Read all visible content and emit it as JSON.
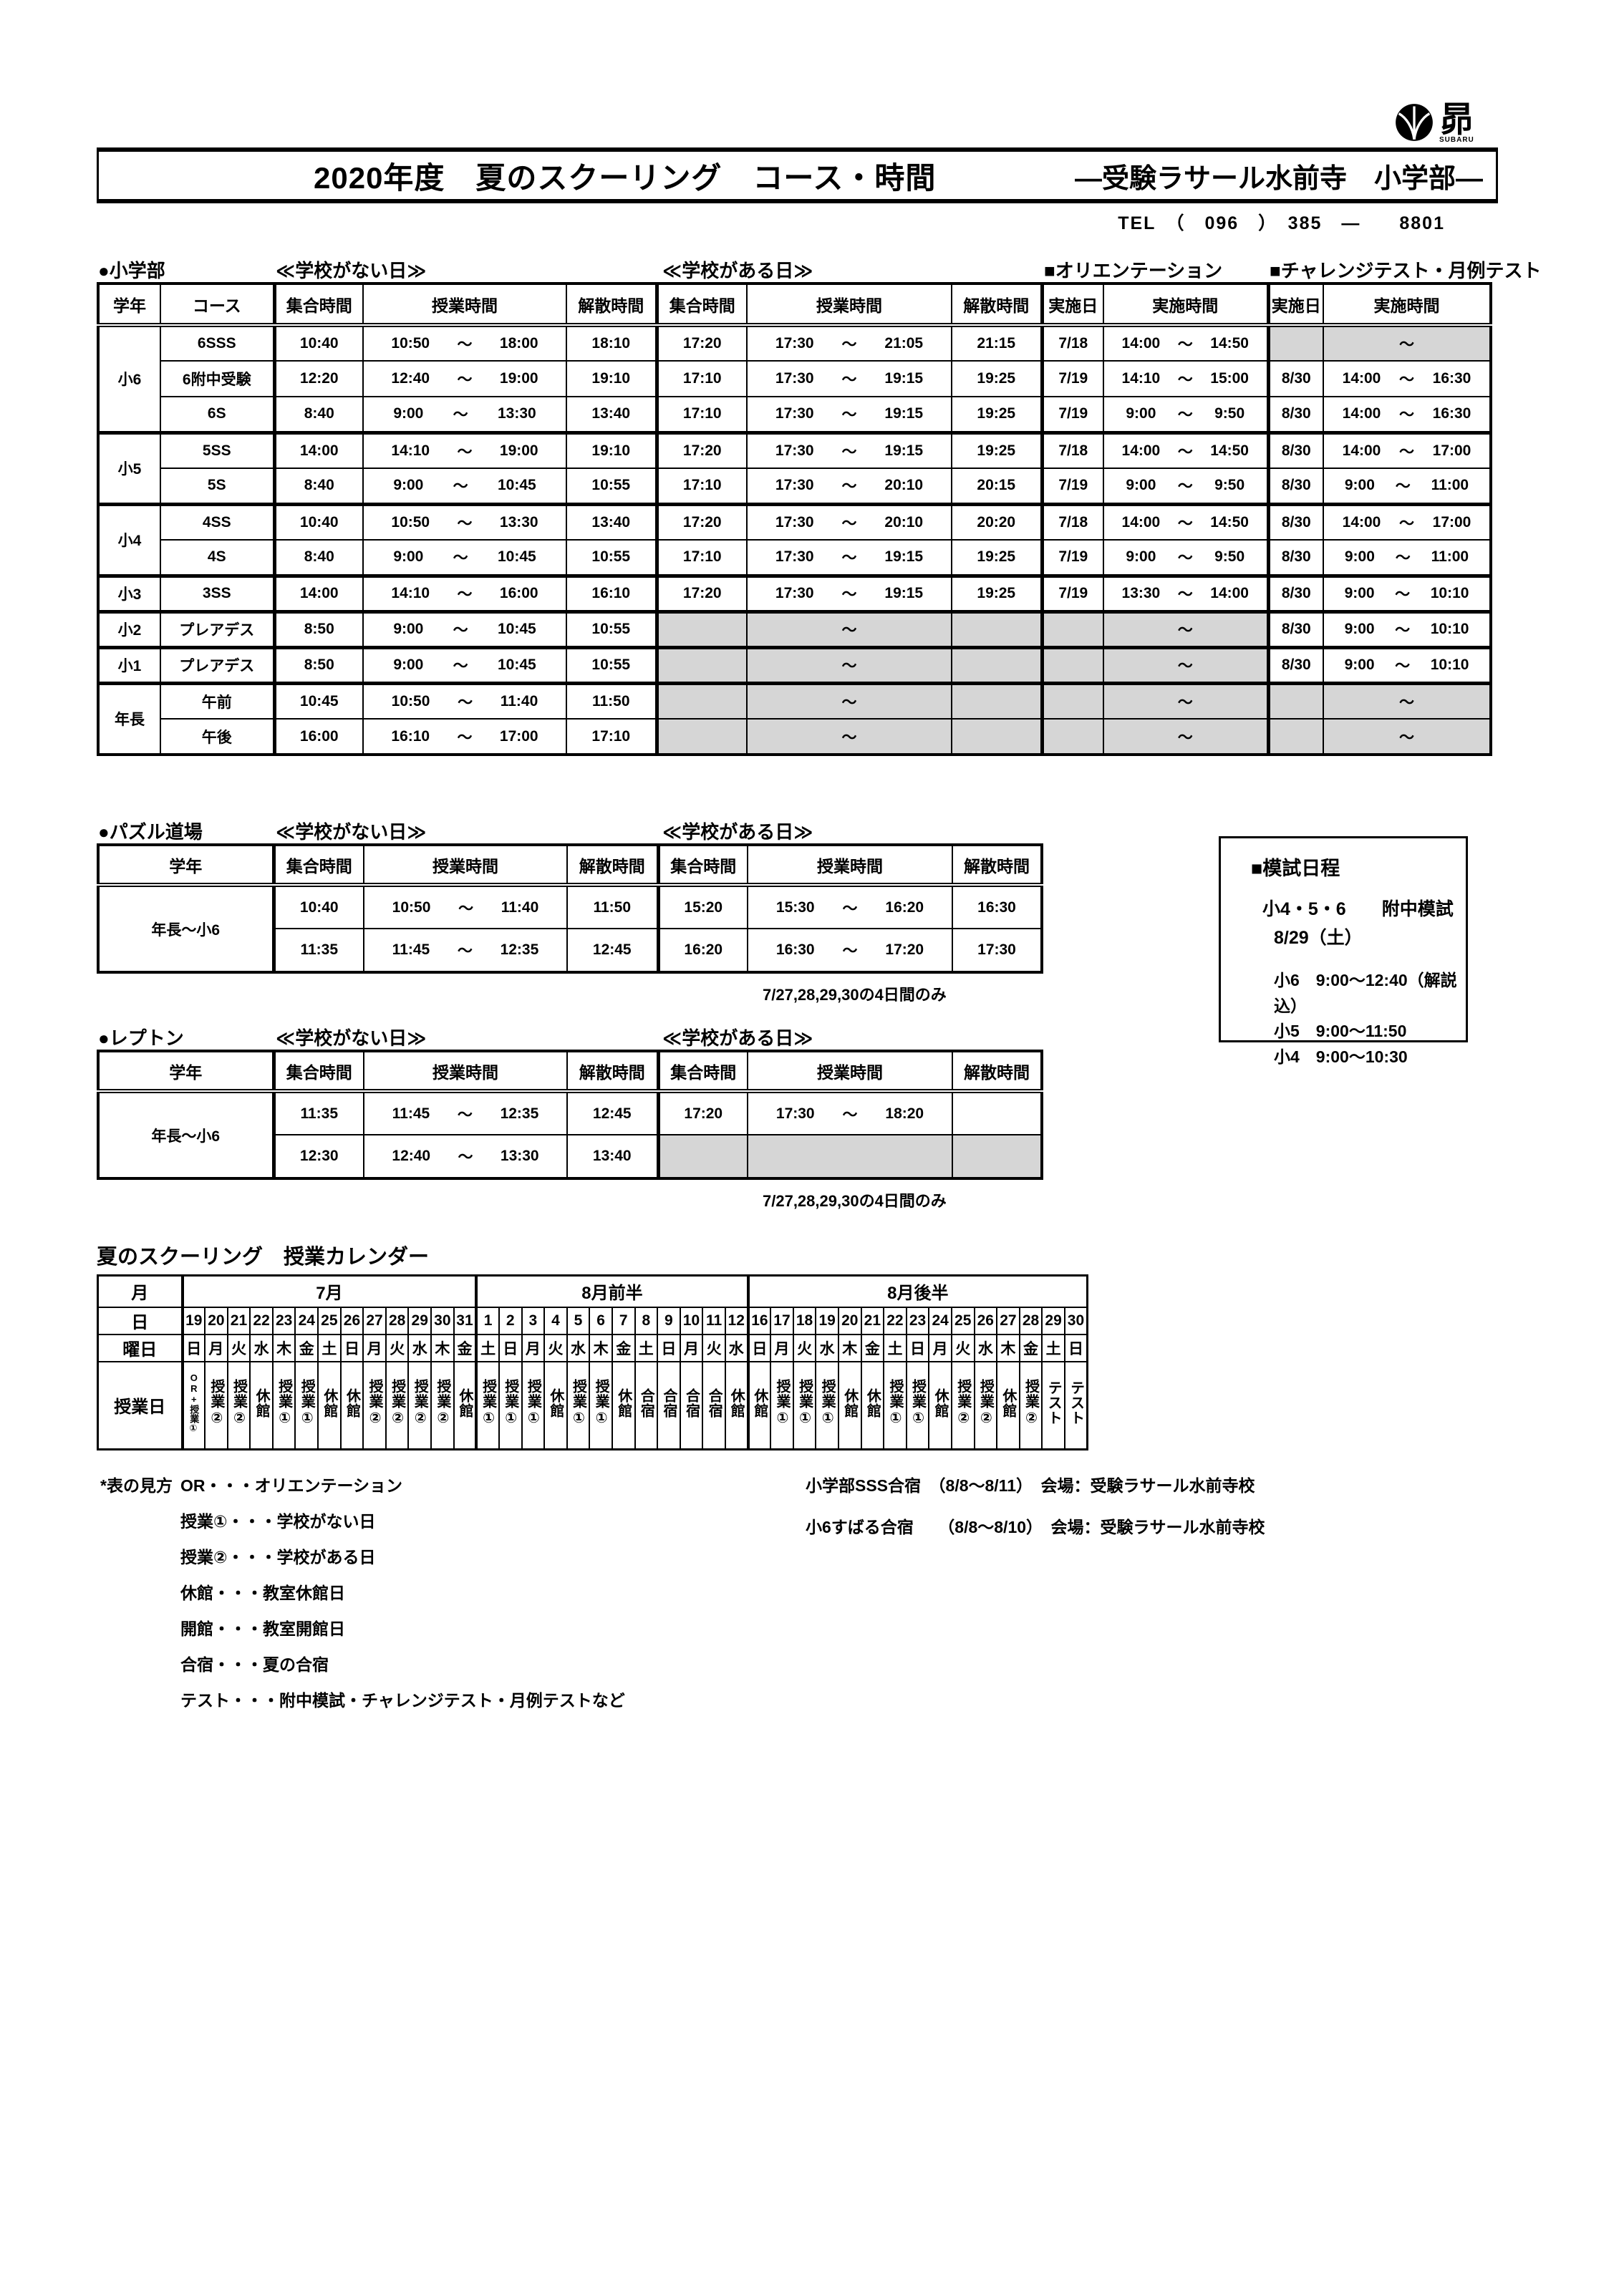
{
  "ui": {
    "tilde": "～"
  },
  "header": {
    "title": "2020年度　夏のスクーリング　コース・時間",
    "school": "―受験ラサール水前寺　小学部―",
    "tel": "TEL　（　096　）　385　―　　8801",
    "logo_char": "昴",
    "logo_latin": "SUBARU"
  },
  "elementary_table": {
    "section_label": "●小学部",
    "no_school_label": "≪学校がない日≫",
    "school_label": "≪学校がある日≫",
    "orientation_label": "■オリエンテーション",
    "challenge_label": "■チャレンジテスト・月例テスト",
    "col_headers": [
      "学年",
      "コース",
      "集合時間",
      "授業時間",
      "解散時間",
      "集合時間",
      "授業時間",
      "解散時間",
      "実施日",
      "実施時間",
      "実施日",
      "実施時間"
    ],
    "groups": [
      {
        "grade": "小6",
        "rows": [
          {
            "course": "6SSS",
            "ns": {
              "meet": "10:40",
              "start": "10:50",
              "end": "18:00",
              "dismiss": "18:10"
            },
            "s": {
              "meet": "17:20",
              "start": "17:30",
              "end": "21:05",
              "dismiss": "21:15"
            },
            "or": {
              "date": "7/18",
              "start": "14:00",
              "end": "14:50"
            },
            "ch": {
              "gray": true
            }
          },
          {
            "course": "6附中受験",
            "ns": {
              "meet": "12:20",
              "start": "12:40",
              "end": "19:00",
              "dismiss": "19:10"
            },
            "s": {
              "meet": "17:10",
              "start": "17:30",
              "end": "19:15",
              "dismiss": "19:25"
            },
            "or": {
              "date": "7/19",
              "start": "14:10",
              "end": "15:00"
            },
            "ch": {
              "date": "8/30",
              "start": "14:00",
              "end": "16:30"
            }
          },
          {
            "course": "6S",
            "ns": {
              "meet": "8:40",
              "start": "9:00",
              "end": "13:30",
              "dismiss": "13:40"
            },
            "s": {
              "meet": "17:10",
              "start": "17:30",
              "end": "19:15",
              "dismiss": "19:25"
            },
            "or": {
              "date": "7/19",
              "start": "9:00",
              "end": "9:50"
            },
            "ch": {
              "date": "8/30",
              "start": "14:00",
              "end": "16:30"
            }
          }
        ]
      },
      {
        "grade": "小5",
        "rows": [
          {
            "course": "5SS",
            "ns": {
              "meet": "14:00",
              "start": "14:10",
              "end": "19:00",
              "dismiss": "19:10"
            },
            "s": {
              "meet": "17:20",
              "start": "17:30",
              "end": "19:15",
              "dismiss": "19:25"
            },
            "or": {
              "date": "7/18",
              "start": "14:00",
              "end": "14:50"
            },
            "ch": {
              "date": "8/30",
              "start": "14:00",
              "end": "17:00"
            }
          },
          {
            "course": "5S",
            "ns": {
              "meet": "8:40",
              "start": "9:00",
              "end": "10:45",
              "dismiss": "10:55"
            },
            "s": {
              "meet": "17:10",
              "start": "17:30",
              "end": "20:10",
              "dismiss": "20:15"
            },
            "or": {
              "date": "7/19",
              "start": "9:00",
              "end": "9:50"
            },
            "ch": {
              "date": "8/30",
              "start": "9:00",
              "end": "11:00"
            }
          }
        ]
      },
      {
        "grade": "小4",
        "rows": [
          {
            "course": "4SS",
            "ns": {
              "meet": "10:40",
              "start": "10:50",
              "end": "13:30",
              "dismiss": "13:40"
            },
            "s": {
              "meet": "17:20",
              "start": "17:30",
              "end": "20:10",
              "dismiss": "20:20"
            },
            "or": {
              "date": "7/18",
              "start": "14:00",
              "end": "14:50"
            },
            "ch": {
              "date": "8/30",
              "start": "14:00",
              "end": "17:00"
            }
          },
          {
            "course": "4S",
            "ns": {
              "meet": "8:40",
              "start": "9:00",
              "end": "10:45",
              "dismiss": "10:55"
            },
            "s": {
              "meet": "17:10",
              "start": "17:30",
              "end": "19:15",
              "dismiss": "19:25"
            },
            "or": {
              "date": "7/19",
              "start": "9:00",
              "end": "9:50"
            },
            "ch": {
              "date": "8/30",
              "start": "9:00",
              "end": "11:00"
            }
          }
        ]
      },
      {
        "grade": "小3",
        "rows": [
          {
            "course": "3SS",
            "ns": {
              "meet": "14:00",
              "start": "14:10",
              "end": "16:00",
              "dismiss": "16:10"
            },
            "s": {
              "meet": "17:20",
              "start": "17:30",
              "end": "19:15",
              "dismiss": "19:25"
            },
            "or": {
              "date": "7/19",
              "start": "13:30",
              "end": "14:00"
            },
            "ch": {
              "date": "8/30",
              "start": "9:00",
              "end": "10:10"
            }
          }
        ]
      },
      {
        "grade": "小2",
        "rows": [
          {
            "course": "プレアデス",
            "ns": {
              "meet": "8:50",
              "start": "9:00",
              "end": "10:45",
              "dismiss": "10:55"
            },
            "s": {
              "gray": true
            },
            "or": {
              "gray": true
            },
            "ch": {
              "date": "8/30",
              "start": "9:00",
              "end": "10:10"
            }
          }
        ]
      },
      {
        "grade": "小1",
        "rows": [
          {
            "course": "プレアデス",
            "ns": {
              "meet": "8:50",
              "start": "9:00",
              "end": "10:45",
              "dismiss": "10:55"
            },
            "s": {
              "gray": true
            },
            "or": {
              "gray": true
            },
            "ch": {
              "date": "8/30",
              "start": "9:00",
              "end": "10:10"
            }
          }
        ]
      },
      {
        "grade": "年長",
        "rows": [
          {
            "course": "午前",
            "ns": {
              "meet": "10:45",
              "start": "10:50",
              "end": "11:40",
              "dismiss": "11:50"
            },
            "s": {
              "gray": true
            },
            "or": {
              "gray": true
            },
            "ch": {
              "gray": true
            }
          },
          {
            "course": "午後",
            "ns": {
              "meet": "16:00",
              "start": "16:10",
              "end": "17:00",
              "dismiss": "17:10"
            },
            "s": {
              "gray": true
            },
            "or": {
              "gray": true
            },
            "ch": {
              "gray": true
            }
          }
        ]
      }
    ]
  },
  "puzzle_table": {
    "section_label": "●パズル道場",
    "no_school_label": "≪学校がない日≫",
    "school_label": "≪学校がある日≫",
    "col_headers": [
      "学年",
      "集合時間",
      "授業時間",
      "解散時間",
      "集合時間",
      "授業時間",
      "解散時間"
    ],
    "grade": "年長～小6",
    "rows": [
      {
        "ns": {
          "meet": "10:40",
          "start": "10:50",
          "end": "11:40",
          "dismiss": "11:50"
        },
        "s": {
          "meet": "15:20",
          "start": "15:30",
          "end": "16:20",
          "dismiss": "16:30"
        }
      },
      {
        "ns": {
          "meet": "11:35",
          "start": "11:45",
          "end": "12:35",
          "dismiss": "12:45"
        },
        "s": {
          "meet": "16:20",
          "start": "16:30",
          "end": "17:20",
          "dismiss": "17:30"
        }
      }
    ],
    "note": "7/27,28,29,30の4日間のみ"
  },
  "lepton_table": {
    "section_label": "●レプトン",
    "no_school_label": "≪学校がない日≫",
    "school_label": "≪学校がある日≫",
    "col_headers": [
      "学年",
      "集合時間",
      "授業時間",
      "解散時間",
      "集合時間",
      "授業時間",
      "解散時間"
    ],
    "grade": "年長～小6",
    "rows": [
      {
        "ns": {
          "meet": "11:35",
          "start": "11:45",
          "end": "12:35",
          "dismiss": "12:45"
        },
        "s": {
          "meet": "17:20",
          "start": "17:30",
          "end": "18:20",
          "dismiss": ""
        }
      },
      {
        "ns": {
          "meet": "12:30",
          "start": "12:40",
          "end": "13:30",
          "dismiss": "13:40"
        },
        "s": {
          "gray": true
        }
      }
    ],
    "note": "7/27,28,29,30の4日間のみ"
  },
  "mock_exam_box": {
    "title": "■模試日程",
    "line1": "小4・5・6　　附中模試",
    "line2": "8/29（土）",
    "times": [
      "小6　9:00～12:40（解説込）",
      "小5　9:00～11:50",
      "小4　9:00～10:30"
    ]
  },
  "calendar": {
    "title": "夏のスクーリング　授業カレンダー",
    "row_headers": {
      "month": "月",
      "day": "日",
      "weekday": "曜日",
      "class_day": "授業日"
    },
    "months": [
      {
        "label": "7月",
        "days": [
          {
            "d": "19",
            "w": "日",
            "t": "OR+授業①",
            "small": true
          },
          {
            "d": "20",
            "w": "月",
            "t": "授業②"
          },
          {
            "d": "21",
            "w": "火",
            "t": "授業②"
          },
          {
            "d": "22",
            "w": "水",
            "t": "休館"
          },
          {
            "d": "23",
            "w": "木",
            "t": "授業①"
          },
          {
            "d": "24",
            "w": "金",
            "t": "授業①"
          },
          {
            "d": "25",
            "w": "土",
            "t": "休館"
          },
          {
            "d": "26",
            "w": "日",
            "t": "休館"
          },
          {
            "d": "27",
            "w": "月",
            "t": "授業②"
          },
          {
            "d": "28",
            "w": "火",
            "t": "授業②"
          },
          {
            "d": "29",
            "w": "水",
            "t": "授業②"
          },
          {
            "d": "30",
            "w": "木",
            "t": "授業②"
          },
          {
            "d": "31",
            "w": "金",
            "t": "休館"
          }
        ]
      },
      {
        "label": "8月前半",
        "days": [
          {
            "d": "1",
            "w": "土",
            "t": "授業①"
          },
          {
            "d": "2",
            "w": "日",
            "t": "授業①"
          },
          {
            "d": "3",
            "w": "月",
            "t": "授業①"
          },
          {
            "d": "4",
            "w": "火",
            "t": "休館"
          },
          {
            "d": "5",
            "w": "水",
            "t": "授業①"
          },
          {
            "d": "6",
            "w": "木",
            "t": "授業①"
          },
          {
            "d": "7",
            "w": "金",
            "t": "休館"
          },
          {
            "d": "8",
            "w": "土",
            "t": "合宿"
          },
          {
            "d": "9",
            "w": "日",
            "t": "合宿"
          },
          {
            "d": "10",
            "w": "月",
            "t": "合宿"
          },
          {
            "d": "11",
            "w": "火",
            "t": "合宿"
          },
          {
            "d": "12",
            "w": "水",
            "t": "休館"
          }
        ]
      },
      {
        "label": "8月後半",
        "days": [
          {
            "d": "16",
            "w": "日",
            "t": "休館"
          },
          {
            "d": "17",
            "w": "月",
            "t": "授業①"
          },
          {
            "d": "18",
            "w": "火",
            "t": "授業①"
          },
          {
            "d": "19",
            "w": "水",
            "t": "授業①"
          },
          {
            "d": "20",
            "w": "木",
            "t": "休館"
          },
          {
            "d": "21",
            "w": "金",
            "t": "休館"
          },
          {
            "d": "22",
            "w": "土",
            "t": "授業①"
          },
          {
            "d": "23",
            "w": "日",
            "t": "授業①"
          },
          {
            "d": "24",
            "w": "月",
            "t": "休館"
          },
          {
            "d": "25",
            "w": "火",
            "t": "授業②"
          },
          {
            "d": "26",
            "w": "水",
            "t": "授業②"
          },
          {
            "d": "27",
            "w": "木",
            "t": "休館"
          },
          {
            "d": "28",
            "w": "金",
            "t": "授業②"
          },
          {
            "d": "29",
            "w": "土",
            "t": "テスト"
          },
          {
            "d": "30",
            "w": "日",
            "t": "テスト"
          }
        ]
      }
    ]
  },
  "legend": {
    "prefix": "*表の見方",
    "items": [
      "OR・・・オリエンテーション",
      "授業①・・・学校がない日",
      "授業②・・・学校がある日",
      "休館・・・教室休館日",
      "開館・・・教室開館日",
      "合宿・・・夏の合宿",
      "テスト・・・附中模試・チャレンジテスト・月例テストなど"
    ],
    "right_notes": [
      "小学部SSS合宿　（8/8～8/11）　会場：受験ラサール水前寺校",
      "小6すばる合宿　　（8/8～8/10）　会場：受験ラサール水前寺校"
    ]
  }
}
